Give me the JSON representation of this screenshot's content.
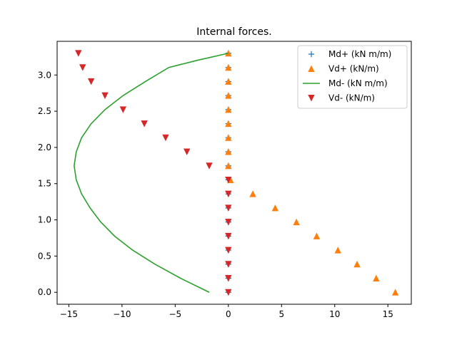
{
  "chart_data": {
    "type": "scatter",
    "title": "Internal forces.",
    "xlabel": "",
    "ylabel": "",
    "xlim": [
      -16.1,
      17.2
    ],
    "ylim": [
      -0.165,
      3.465
    ],
    "xticks": [
      -15,
      -10,
      -5,
      0,
      5,
      10,
      15
    ],
    "xtick_labels": [
      "−15",
      "−10",
      "−5",
      "0",
      "5",
      "10",
      "15"
    ],
    "yticks": [
      0.0,
      0.5,
      1.0,
      1.5,
      2.0,
      2.5,
      3.0
    ],
    "ytick_labels": [
      "0.0",
      "0.5",
      "1.0",
      "1.5",
      "2.0",
      "2.5",
      "3.0"
    ],
    "grid": false,
    "legend_position": "top-right",
    "series": [
      {
        "name": "Md+ (kN m/m)",
        "marker": "plus",
        "color": "#1f77b4",
        "x": [
          0,
          0,
          0,
          0,
          0,
          0,
          0,
          0,
          0,
          0,
          0,
          0,
          0,
          0,
          0,
          0,
          0,
          0
        ],
        "y": [
          0.0,
          0.194,
          0.388,
          0.582,
          0.776,
          0.97,
          1.164,
          1.358,
          1.552,
          1.746,
          1.94,
          2.134,
          2.328,
          2.522,
          2.716,
          2.91,
          3.104,
          3.3
        ]
      },
      {
        "name": "Vd+ (kN/m)",
        "marker": "triangle-up",
        "color": "#ff7f0e",
        "x": [
          15.7,
          13.9,
          12.1,
          10.3,
          8.3,
          6.4,
          4.4,
          2.3,
          0.2,
          0,
          0,
          0,
          0,
          0,
          0,
          0,
          0,
          0
        ],
        "y": [
          0.0,
          0.194,
          0.388,
          0.582,
          0.776,
          0.97,
          1.164,
          1.358,
          1.552,
          1.746,
          1.94,
          2.134,
          2.328,
          2.522,
          2.716,
          2.91,
          3.104,
          3.3
        ]
      },
      {
        "name": "Md- (kN m/m)",
        "marker": "line",
        "color": "#2ca02c",
        "x": [
          -1.8,
          -4.5,
          -6.9,
          -9.0,
          -10.7,
          -12.0,
          -13.0,
          -13.8,
          -14.3,
          -14.5,
          -14.3,
          -13.8,
          -12.9,
          -11.6,
          -9.9,
          -7.8,
          -5.6,
          -3.0,
          0.0
        ],
        "y": [
          0.0,
          0.194,
          0.388,
          0.582,
          0.776,
          0.97,
          1.164,
          1.358,
          1.552,
          1.746,
          1.94,
          2.134,
          2.328,
          2.522,
          2.716,
          2.91,
          3.104,
          3.2,
          3.3
        ]
      },
      {
        "name": "Vd- (kN/m)",
        "marker": "triangle-down",
        "color": "#d62728",
        "x": [
          0,
          0,
          0,
          0,
          0,
          0,
          0,
          0,
          0,
          -1.8,
          -3.9,
          -5.9,
          -7.9,
          -9.9,
          -11.6,
          -12.9,
          -13.7,
          -14.1
        ],
        "y": [
          0.0,
          0.194,
          0.388,
          0.582,
          0.776,
          0.97,
          1.164,
          1.358,
          1.552,
          1.746,
          1.94,
          2.134,
          2.328,
          2.522,
          2.716,
          2.91,
          3.104,
          3.3
        ]
      }
    ]
  }
}
